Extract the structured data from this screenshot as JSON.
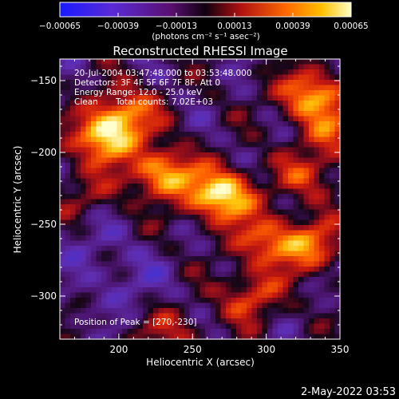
{
  "chart_data": {
    "type": "heatmap",
    "title": "Reconstructed RHESSI Image",
    "xlabel": "Heliocentric X (arcsec)",
    "ylabel": "Heliocentric Y (arcsec)",
    "xlim": [
      160,
      350
    ],
    "ylim": [
      -330,
      -135
    ],
    "x_ticks": [
      200,
      250,
      300,
      350
    ],
    "x_tick_labels": [
      "200",
      "250",
      "300",
      "350"
    ],
    "y_ticks": [
      -150,
      -200,
      -250,
      -300
    ],
    "y_tick_labels": [
      "−150",
      "−200",
      "−250",
      "−300"
    ],
    "colorbar": {
      "range": [
        -0.00065,
        0.00065
      ],
      "ticks": [
        -0.00065,
        -0.00039,
        -0.00013,
        0.00013,
        0.00039,
        0.00065
      ],
      "tick_labels": [
        "−0.00065",
        "−0.00039",
        "−0.00013",
        "0.00013",
        "0.00039",
        "0.00065"
      ],
      "unit_label": "(photons cm⁻² s⁻¹ asec⁻²)"
    },
    "annotations": {
      "time": "20-Jul-2004 03:47:48.000 to 03:53:48.000",
      "detectors": "Detectors: 3F 4F 5F 6F 7F 8F, Att 0",
      "energy": "Energy Range: 12.0 - 25.0 keV",
      "clean": "Clean",
      "counts": "Total counts: 7.02E+03",
      "peak": "Position of Peak = [270,-230]"
    },
    "peak_position": [
      270,
      -230
    ],
    "sources": [
      {
        "x": 270,
        "y": -230,
        "intensity": 1.0
      },
      {
        "x": 190,
        "y": -190,
        "intensity": 0.85
      },
      {
        "x": 230,
        "y": -215,
        "intensity": 0.8
      },
      {
        "x": 205,
        "y": -172,
        "intensity": 0.6
      },
      {
        "x": 330,
        "y": -160,
        "intensity": 0.75
      },
      {
        "x": 300,
        "y": -262,
        "intensity": 0.55
      },
      {
        "x": 330,
        "y": -265,
        "intensity": 0.6
      },
      {
        "x": 290,
        "y": -300,
        "intensity": 0.5
      },
      {
        "x": 330,
        "y": -215,
        "intensity": 0.45
      },
      {
        "x": 345,
        "y": -185,
        "intensity": 0.4
      },
      {
        "x": 235,
        "y": -325,
        "intensity": 0.35
      },
      {
        "x": 175,
        "y": -230,
        "intensity": 0.3
      }
    ],
    "timestamp": "2-May-2022 03:53"
  }
}
